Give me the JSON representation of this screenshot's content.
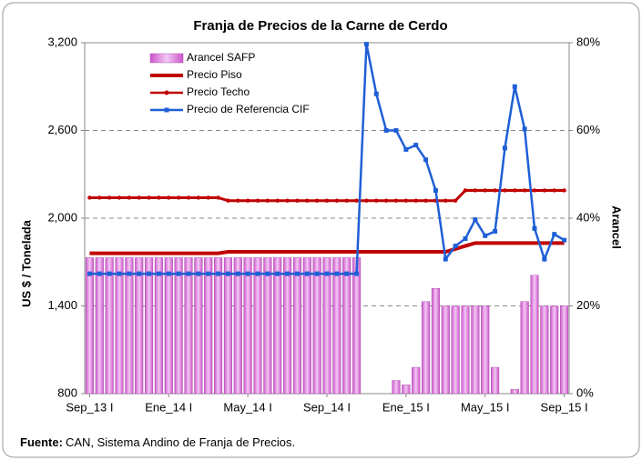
{
  "chart_data": {
    "type": "combo",
    "title": "Franja de Precios de la Carne de Cerdo",
    "y_label": "US $ / Tonelada",
    "y2_label": "Arancel",
    "note_label": "Fuente:",
    "note": "CAN, Sistema Andino de Franja de Precios.",
    "categories": [
      "Sep_13 I",
      null,
      null,
      null,
      null,
      null,
      null,
      null,
      "Ene_14 I",
      null,
      null,
      null,
      null,
      null,
      null,
      null,
      "May_14 I",
      null,
      null,
      null,
      null,
      null,
      null,
      null,
      "Sep_14 I",
      null,
      null,
      null,
      null,
      null,
      null,
      null,
      "Ene_15 I",
      null,
      null,
      null,
      null,
      null,
      null,
      null,
      "May_15 I",
      null,
      null,
      null,
      null,
      null,
      null,
      null,
      "Sep_15 I"
    ],
    "ylim": [
      800,
      3200
    ],
    "yticks": [
      800,
      {
        "value": 1400,
        "label": "1,400"
      },
      {
        "value": 2000,
        "label": "2,000"
      },
      {
        "value": 2600,
        "label": "2,600"
      },
      {
        "value": 3200,
        "label": "3,200"
      }
    ],
    "y2lim": [
      0,
      80
    ],
    "y2ticks": [
      {
        "value": 0,
        "label": "0%"
      },
      {
        "value": 20,
        "label": "20%"
      },
      {
        "value": 40,
        "label": "40%"
      },
      {
        "value": 60,
        "label": "60%"
      },
      {
        "value": 80,
        "label": "80%"
      }
    ],
    "grid": true,
    "legend": "top-left",
    "series": [
      {
        "name": "Arancel SAFP",
        "type": "bar",
        "axis": "y2",
        "color": "#cc55cc",
        "values": [
          31,
          31,
          31,
          31,
          31,
          31,
          31,
          31,
          31,
          31,
          31,
          31,
          31,
          31,
          31,
          31,
          31,
          31,
          31,
          31,
          31,
          31,
          31,
          31,
          31,
          31,
          31,
          31,
          0,
          0,
          0,
          3,
          2,
          6,
          21,
          24,
          20,
          20,
          20,
          20,
          20,
          6,
          0,
          1,
          21,
          27,
          20,
          20,
          20
        ]
      },
      {
        "name": "Precio Piso",
        "type": "line",
        "marker": "none",
        "color": "#c00000",
        "values": [
          1760,
          1760,
          1760,
          1760,
          1760,
          1760,
          1760,
          1760,
          1760,
          1760,
          1760,
          1760,
          1760,
          1760,
          1770,
          1770,
          1770,
          1770,
          1770,
          1770,
          1770,
          1770,
          1770,
          1770,
          1770,
          1770,
          1770,
          1770,
          1770,
          1770,
          1770,
          1770,
          1770,
          1770,
          1770,
          1770,
          1770,
          1790,
          1810,
          1830,
          1830,
          1830,
          1830,
          1830,
          1830,
          1830,
          1830,
          1830,
          1830
        ]
      },
      {
        "name": "Precio Techo",
        "type": "line",
        "marker": "circle",
        "color": "#c00000",
        "values": [
          2140,
          2140,
          2140,
          2140,
          2140,
          2140,
          2140,
          2140,
          2140,
          2140,
          2140,
          2140,
          2140,
          2140,
          2120,
          2120,
          2120,
          2120,
          2120,
          2120,
          2120,
          2120,
          2120,
          2120,
          2120,
          2120,
          2120,
          2120,
          2120,
          2120,
          2120,
          2120,
          2120,
          2120,
          2120,
          2120,
          2120,
          2120,
          2190,
          2190,
          2190,
          2190,
          2190,
          2190,
          2190,
          2190,
          2190,
          2190,
          2190
        ]
      },
      {
        "name": "Precio de Referencia CIF",
        "type": "line",
        "marker": "square",
        "color": "#1f5fd6",
        "values": [
          1620,
          1620,
          1620,
          1620,
          1620,
          1620,
          1620,
          1620,
          1620,
          1620,
          1620,
          1620,
          1620,
          1620,
          1620,
          1620,
          1620,
          1620,
          1620,
          1620,
          1620,
          1620,
          1620,
          1620,
          1620,
          1620,
          1620,
          1620,
          3190,
          2850,
          2600,
          2600,
          2470,
          2500,
          2400,
          2190,
          1720,
          1810,
          1860,
          1990,
          1880,
          1910,
          2480,
          2900,
          2610,
          1930,
          1720,
          1890,
          1850
        ]
      }
    ]
  }
}
